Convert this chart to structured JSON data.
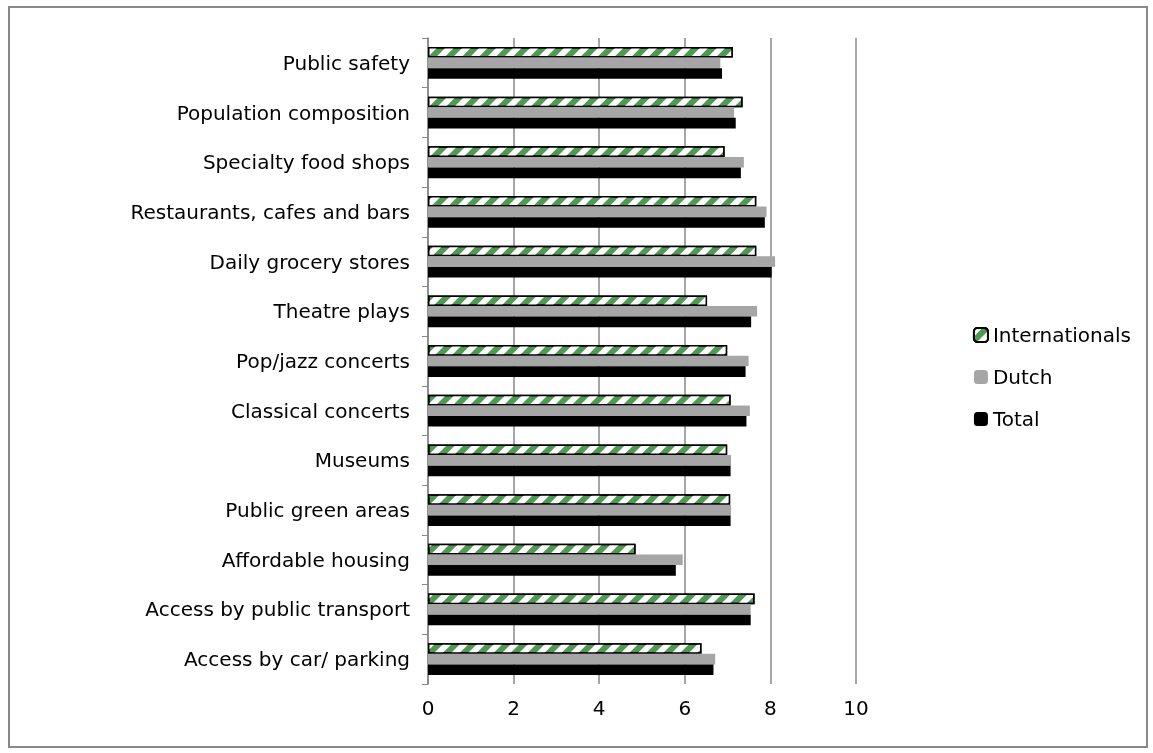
{
  "chart_data": {
    "type": "bar",
    "orientation": "horizontal",
    "categories": [
      "Public safety",
      "Population composition",
      "Specialty food shops",
      "Restaurants, cafes and bars",
      "Daily grocery stores",
      "Theatre plays",
      "Pop/jazz concerts",
      "Classical concerts",
      "Museums",
      "Public green areas",
      "Affordable housing",
      "Access by public transport",
      "Access by car/ parking"
    ],
    "series": [
      {
        "name": "Internationals",
        "color": "#4e9a52",
        "values": [
          7.12,
          7.35,
          6.93,
          7.67,
          7.67,
          6.52,
          6.99,
          7.07,
          6.99,
          7.06,
          4.85,
          7.63,
          6.39
        ]
      },
      {
        "name": "Dutch",
        "color": "#a6a6a6",
        "values": [
          6.83,
          7.15,
          7.38,
          7.91,
          8.11,
          7.69,
          7.49,
          7.52,
          7.08,
          7.08,
          5.95,
          7.54,
          6.71
        ]
      },
      {
        "name": "Total",
        "color": "#000000",
        "values": [
          6.87,
          7.19,
          7.31,
          7.87,
          8.03,
          7.55,
          7.42,
          7.44,
          7.07,
          7.07,
          5.79,
          7.54,
          6.67
        ]
      }
    ],
    "xlim": [
      0,
      10
    ],
    "xticks": [
      0,
      2,
      4,
      6,
      8,
      10
    ],
    "grid": "x",
    "legend": "right"
  }
}
